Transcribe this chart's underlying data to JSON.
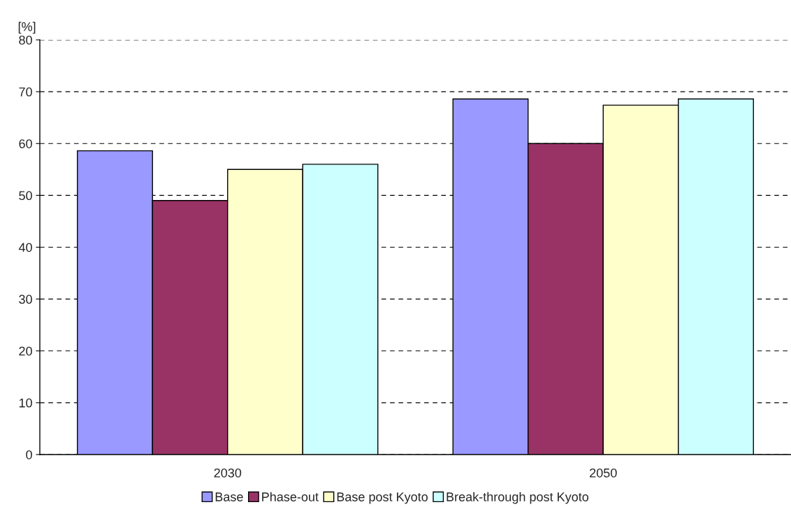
{
  "chart_data": {
    "type": "bar",
    "ylabel": "[%]",
    "categories": [
      "2030",
      "2050"
    ],
    "series": [
      {
        "name": "Base",
        "color": "#9999ff",
        "values": [
          58.6,
          68.6
        ]
      },
      {
        "name": "Phase-out",
        "color": "#993366",
        "values": [
          49.0,
          60.0
        ]
      },
      {
        "name": "Base post Kyoto",
        "color": "#ffffcc",
        "values": [
          55.0,
          67.4
        ]
      },
      {
        "name": "Break-through post Kyoto",
        "color": "#ccffff",
        "values": [
          56.0,
          68.6
        ]
      }
    ],
    "ylim": [
      0,
      80
    ],
    "yticks": [
      0,
      10,
      20,
      30,
      40,
      50,
      60,
      70,
      80
    ],
    "grid": "y",
    "legend": "bottom"
  }
}
